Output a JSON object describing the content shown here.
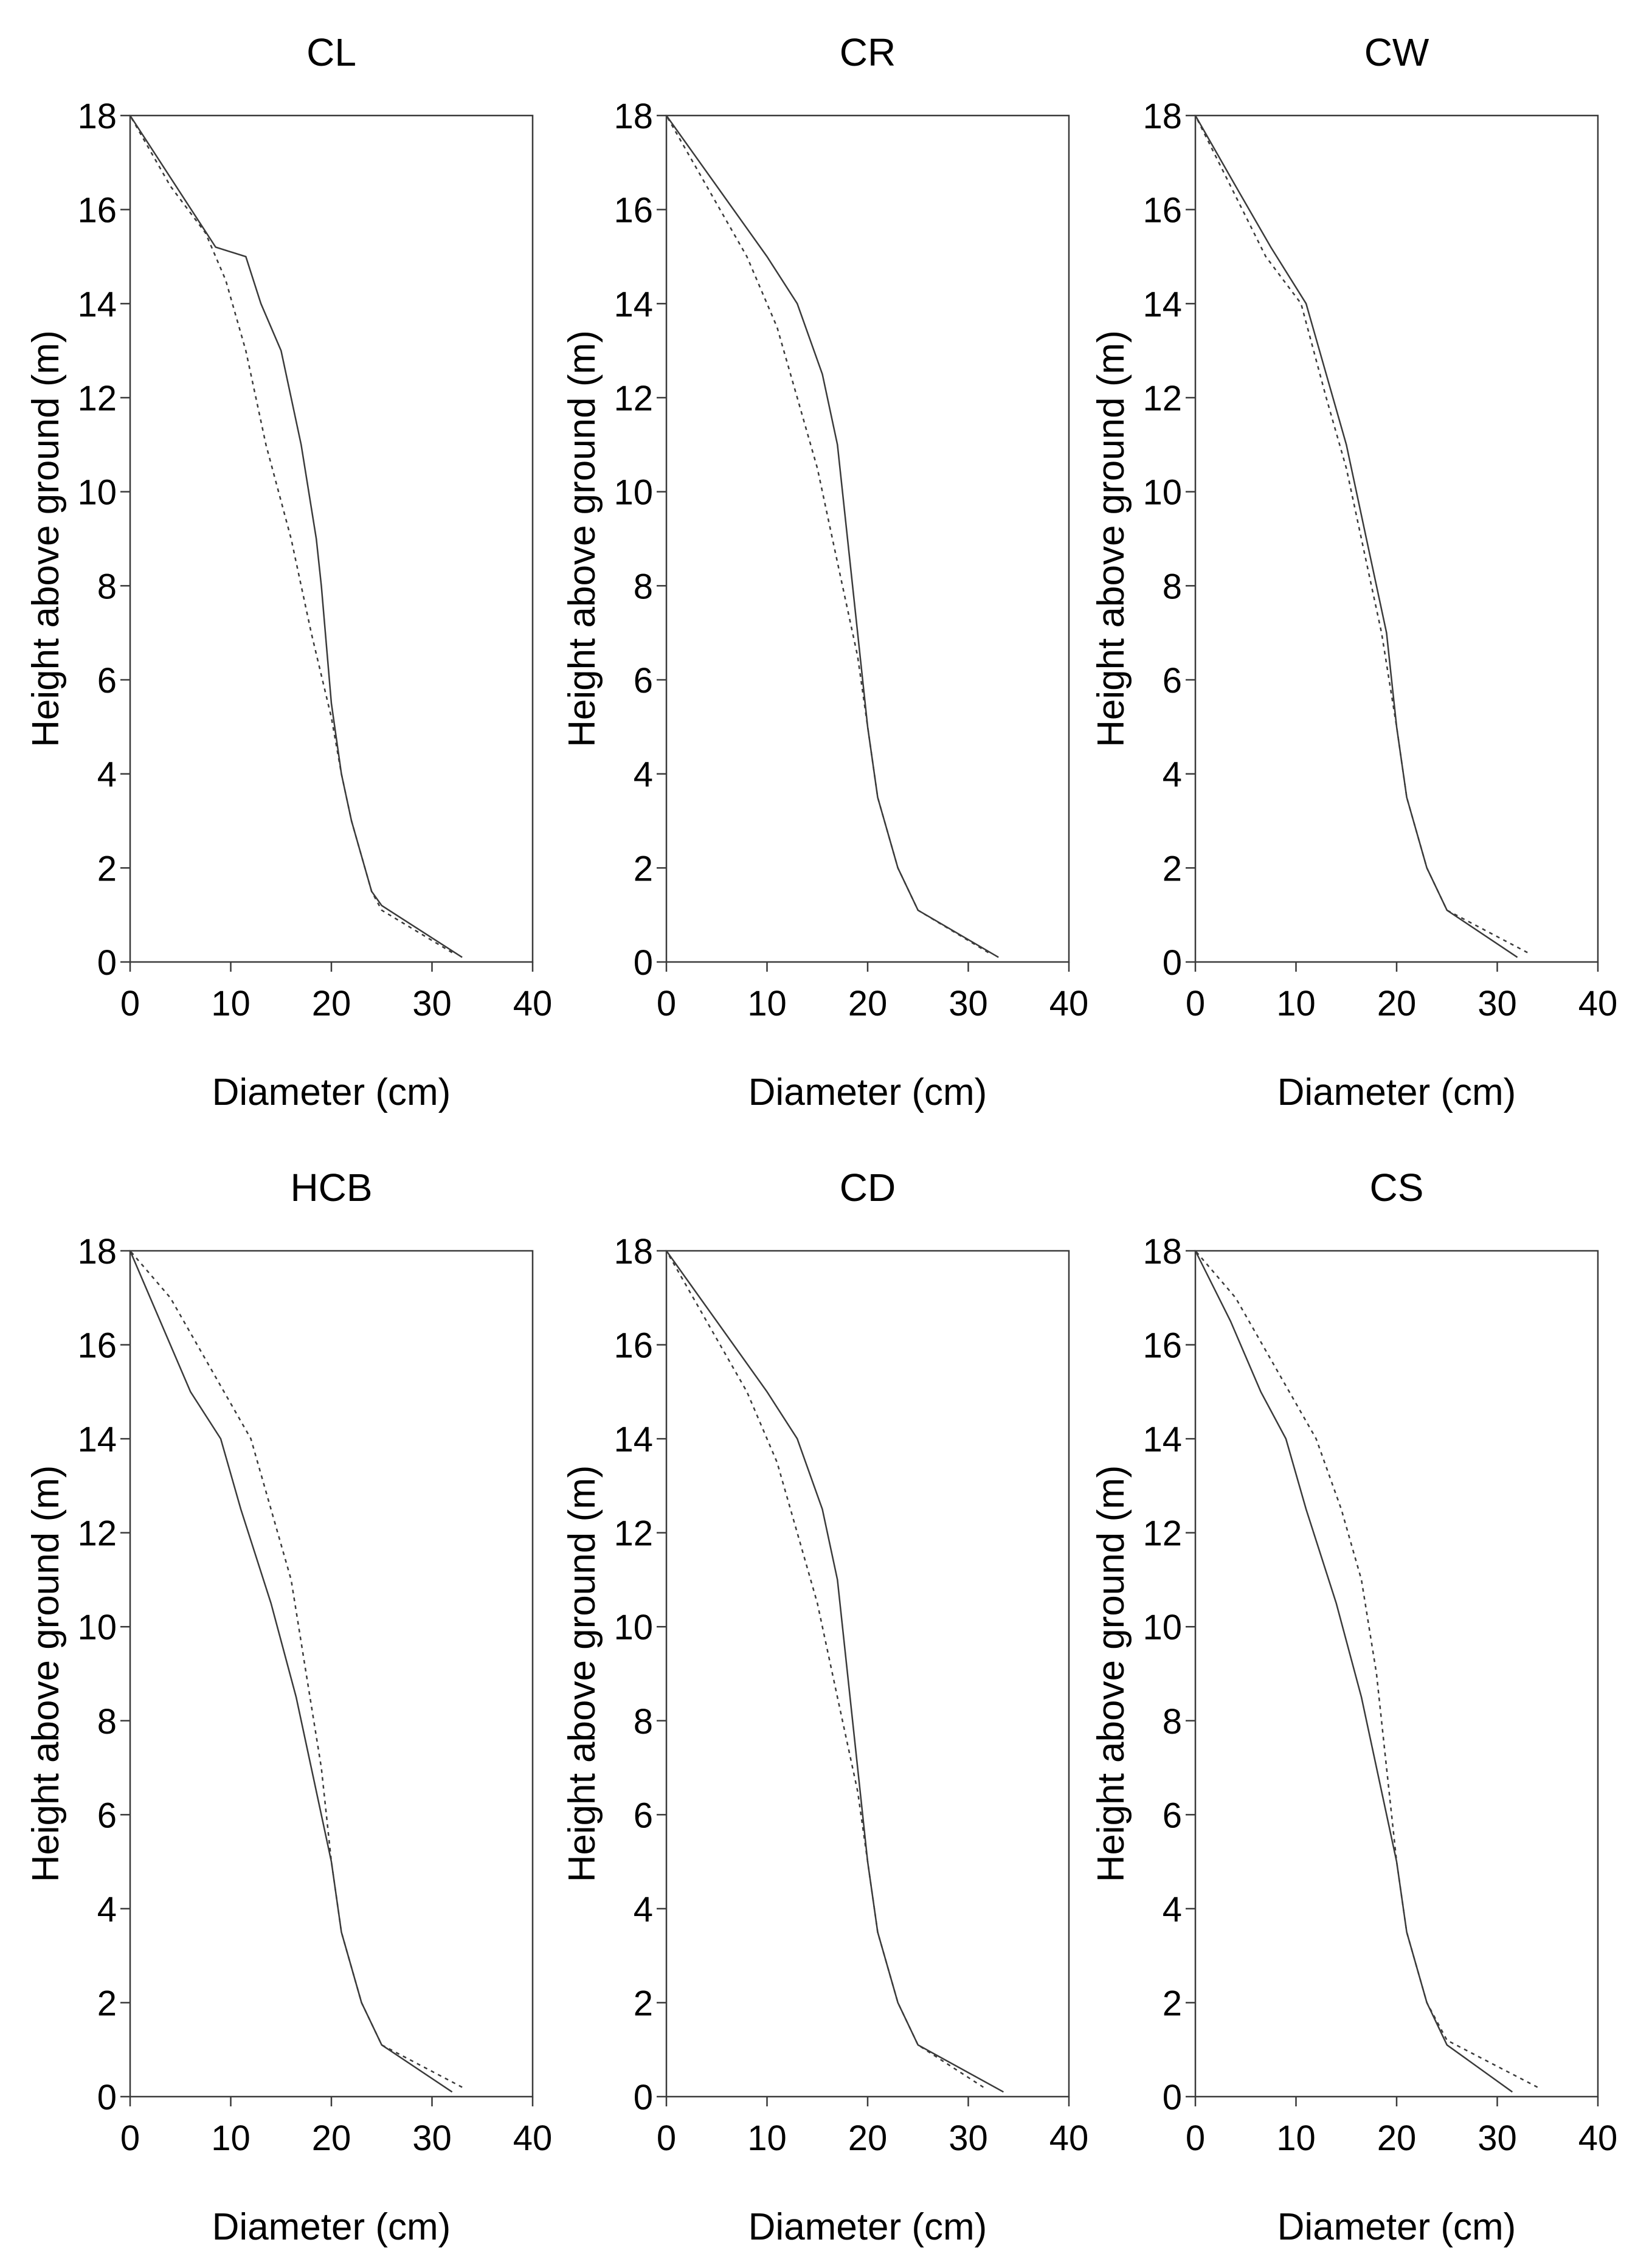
{
  "chart_data": [
    {
      "type": "line",
      "title": "CL",
      "xlabel": "Diameter  (cm)",
      "ylabel": "Height  above  ground  (m)",
      "xlim": [
        0,
        40
      ],
      "ylim": [
        0,
        18
      ],
      "xticks": [
        0,
        10,
        20,
        30,
        40
      ],
      "yticks": [
        0,
        2,
        4,
        6,
        8,
        10,
        12,
        14,
        16,
        18
      ],
      "series": [
        {
          "name": "solid",
          "style": "solid",
          "x": [
            33,
            25,
            24,
            22,
            21,
            20,
            19,
            18.5,
            17,
            15,
            13,
            11.5,
            8.5,
            0
          ],
          "y": [
            0.1,
            1.2,
            1.5,
            3,
            4,
            5.5,
            8,
            9,
            11,
            13,
            14,
            15,
            15.2,
            18
          ]
        },
        {
          "name": "dashed",
          "style": "dashed",
          "x": [
            32,
            25,
            24,
            22,
            21,
            20,
            18,
            16,
            13.5,
            11.5,
            9.5,
            7.5,
            4,
            0
          ],
          "y": [
            0.2,
            1.1,
            1.5,
            3,
            4,
            5.2,
            7,
            9,
            11,
            13,
            14.5,
            15.5,
            16.5,
            18
          ]
        }
      ]
    },
    {
      "type": "line",
      "title": "CR",
      "xlabel": "Diameter  (cm)",
      "ylabel": "Height  above  ground  (m)",
      "xlim": [
        0,
        40
      ],
      "ylim": [
        0,
        18
      ],
      "xticks": [
        0,
        10,
        20,
        30,
        40
      ],
      "yticks": [
        0,
        2,
        4,
        6,
        8,
        10,
        12,
        14,
        16,
        18
      ],
      "series": [
        {
          "name": "solid",
          "style": "solid",
          "x": [
            33,
            25,
            23,
            21,
            20,
            19,
            18,
            17,
            15.5,
            13,
            10,
            5,
            0
          ],
          "y": [
            0.1,
            1.1,
            2,
            3.5,
            5,
            7,
            9,
            11,
            12.5,
            14,
            15,
            16.5,
            18
          ]
        },
        {
          "name": "dashed",
          "style": "dashed",
          "x": [
            32,
            25,
            23,
            21,
            20,
            19,
            17,
            15,
            13,
            11,
            8,
            4,
            0
          ],
          "y": [
            0.2,
            1.1,
            2,
            3.5,
            5,
            6.5,
            8.5,
            10.5,
            12,
            13.5,
            15,
            16.5,
            18
          ]
        }
      ]
    },
    {
      "type": "line",
      "title": "CW",
      "xlabel": "Diameter  (cm)",
      "ylabel": "Height  above  ground  (m)",
      "xlim": [
        0,
        40
      ],
      "ylim": [
        0,
        18
      ],
      "xticks": [
        0,
        10,
        20,
        30,
        40
      ],
      "yticks": [
        0,
        2,
        4,
        6,
        8,
        10,
        12,
        14,
        16,
        18
      ],
      "series": [
        {
          "name": "solid",
          "style": "solid",
          "x": [
            32,
            25,
            23,
            21,
            20,
            19,
            17,
            15,
            13,
            11,
            7.5,
            4,
            0
          ],
          "y": [
            0.1,
            1.1,
            2,
            3.5,
            5,
            7,
            9,
            11,
            12.5,
            14,
            15.2,
            16.5,
            18
          ]
        },
        {
          "name": "dashed",
          "style": "dashed",
          "x": [
            33,
            25,
            23,
            21,
            20,
            18.5,
            17,
            15,
            13,
            10.5,
            7,
            3.5,
            0
          ],
          "y": [
            0.2,
            1.1,
            2,
            3.5,
            5,
            7,
            8.5,
            10.5,
            12,
            14,
            15,
            16.5,
            18
          ]
        }
      ]
    },
    {
      "type": "line",
      "title": "HCB",
      "xlabel": "Diameter  (cm)",
      "ylabel": "Height  above  ground  (m)",
      "xlim": [
        0,
        40
      ],
      "ylim": [
        0,
        18
      ],
      "xticks": [
        0,
        10,
        20,
        30,
        40
      ],
      "yticks": [
        0,
        2,
        4,
        6,
        8,
        10,
        12,
        14,
        16,
        18
      ],
      "series": [
        {
          "name": "solid",
          "style": "solid",
          "x": [
            32,
            25,
            23,
            21,
            20,
            18.5,
            16.5,
            14,
            11,
            9,
            6,
            3,
            0
          ],
          "y": [
            0.1,
            1.1,
            2,
            3.5,
            5,
            6.5,
            8.5,
            10.5,
            12.5,
            14,
            15,
            16.5,
            18
          ]
        },
        {
          "name": "dashed",
          "style": "dashed",
          "x": [
            33,
            25,
            23,
            21,
            20,
            19,
            17.5,
            16,
            14,
            12,
            8,
            4,
            0
          ],
          "y": [
            0.2,
            1.1,
            2,
            3.5,
            5,
            7,
            9,
            11,
            12.5,
            14,
            15.5,
            17,
            18
          ]
        }
      ]
    },
    {
      "type": "line",
      "title": "CD",
      "xlabel": "Diameter  (cm)",
      "ylabel": "Height  above  ground  (m)",
      "xlim": [
        0,
        40
      ],
      "ylim": [
        0,
        18
      ],
      "xticks": [
        0,
        10,
        20,
        30,
        40
      ],
      "yticks": [
        0,
        2,
        4,
        6,
        8,
        10,
        12,
        14,
        16,
        18
      ],
      "series": [
        {
          "name": "solid",
          "style": "solid",
          "x": [
            33.5,
            25,
            23,
            21,
            20,
            19,
            18,
            17,
            15.5,
            13,
            10,
            5,
            0
          ],
          "y": [
            0.1,
            1.1,
            2,
            3.5,
            5,
            7,
            9,
            11,
            12.5,
            14,
            15,
            16.5,
            18
          ]
        },
        {
          "name": "dashed",
          "style": "dashed",
          "x": [
            31.5,
            25,
            23,
            21,
            20,
            19,
            17,
            15,
            13,
            11,
            8,
            4,
            0
          ],
          "y": [
            0.2,
            1.1,
            2,
            3.5,
            5,
            6.5,
            8.5,
            10.5,
            12,
            13.5,
            15,
            16.5,
            18
          ]
        }
      ]
    },
    {
      "type": "line",
      "title": "CS",
      "xlabel": "Diameter  (cm)",
      "ylabel": "Height  above  ground  (m)",
      "xlim": [
        0,
        40
      ],
      "ylim": [
        0,
        18
      ],
      "xticks": [
        0,
        10,
        20,
        30,
        40
      ],
      "yticks": [
        0,
        2,
        4,
        6,
        8,
        10,
        12,
        14,
        16,
        18
      ],
      "series": [
        {
          "name": "solid",
          "style": "solid",
          "x": [
            31.5,
            25,
            23,
            21,
            20,
            18.5,
            16.5,
            14,
            11,
            9,
            6.5,
            3.5,
            0
          ],
          "y": [
            0.1,
            1.1,
            2,
            3.5,
            5,
            6.5,
            8.5,
            10.5,
            12.5,
            14,
            15,
            16.5,
            18
          ]
        },
        {
          "name": "dashed",
          "style": "dashed",
          "x": [
            34,
            25,
            23,
            21,
            20,
            19,
            18,
            16.5,
            14.5,
            12,
            8,
            4,
            0
          ],
          "y": [
            0.2,
            1.2,
            2,
            3.5,
            5,
            7,
            9,
            11,
            12.5,
            14,
            15.5,
            17,
            18
          ]
        }
      ]
    }
  ]
}
